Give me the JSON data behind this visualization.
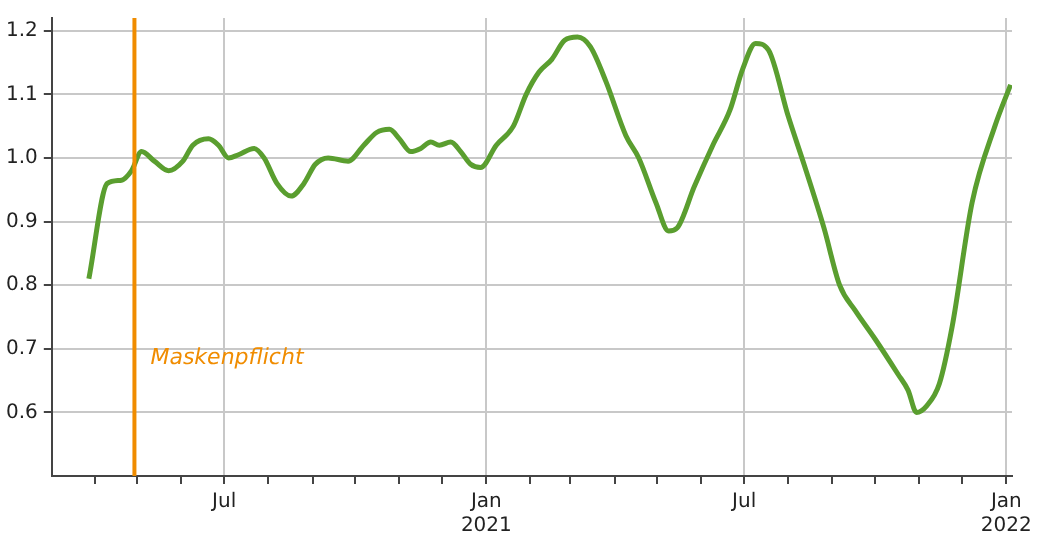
{
  "chart_data": {
    "type": "line",
    "x": [
      "2020-03-28",
      "2020-04-10",
      "2020-04-20",
      "2020-04-27",
      "2020-05-04",
      "2020-05-13",
      "2020-05-23",
      "2020-06-02",
      "2020-06-09",
      "2020-06-20",
      "2020-06-27",
      "2020-07-04",
      "2020-07-11",
      "2020-07-22",
      "2020-07-29",
      "2020-08-07",
      "2020-08-17",
      "2020-08-26",
      "2020-09-03",
      "2020-09-12",
      "2020-09-26",
      "2020-10-07",
      "2020-10-16",
      "2020-10-25",
      "2020-11-01",
      "2020-11-09",
      "2020-11-16",
      "2020-11-23",
      "2020-11-29",
      "2020-12-07",
      "2020-12-14",
      "2020-12-21",
      "2020-12-28",
      "2021-01-08",
      "2021-01-20",
      "2021-01-29",
      "2021-02-07",
      "2021-02-16",
      "2021-02-25",
      "2021-03-06",
      "2021-03-15",
      "2021-03-26",
      "2021-04-09",
      "2021-04-18",
      "2021-04-30",
      "2021-05-09",
      "2021-05-15",
      "2021-05-27",
      "2021-06-09",
      "2021-06-21",
      "2021-06-30",
      "2021-07-09",
      "2021-07-18",
      "2021-08-01",
      "2021-08-12",
      "2021-08-26",
      "2021-09-06",
      "2021-09-17",
      "2021-10-01",
      "2021-10-17",
      "2021-10-24",
      "2021-10-30",
      "2021-11-06",
      "2021-11-15",
      "2021-11-24",
      "2021-12-08",
      "2021-12-24",
      "2022-01-04"
    ],
    "series": [
      {
        "color": "#5a9e2f",
        "values": [
          0.81,
          0.96,
          0.965,
          0.98,
          1.01,
          0.995,
          0.98,
          0.995,
          1.02,
          1.03,
          1.02,
          1.0,
          1.005,
          1.015,
          1.0,
          0.96,
          0.94,
          0.96,
          0.99,
          1.0,
          0.995,
          1.02,
          1.04,
          1.045,
          1.03,
          1.01,
          1.015,
          1.025,
          1.02,
          1.025,
          1.01,
          0.99,
          0.985,
          1.02,
          1.05,
          1.1,
          1.135,
          1.155,
          1.185,
          1.19,
          1.175,
          1.12,
          1.035,
          1.0,
          0.93,
          0.885,
          0.89,
          0.955,
          1.02,
          1.075,
          1.14,
          1.18,
          1.17,
          1.065,
          0.99,
          0.89,
          0.8,
          0.76,
          0.715,
          0.66,
          0.635,
          0.6,
          0.61,
          0.645,
          0.735,
          0.93,
          1.05,
          1.115
        ]
      }
    ],
    "xlim": [
      "2020-03-02",
      "2022-01-05"
    ],
    "xticks": [
      {
        "value": "2020-04-01",
        "label": null
      },
      {
        "value": "2020-05-01",
        "label": null
      },
      {
        "value": "2020-06-01",
        "label": null
      },
      {
        "value": "2020-07-01",
        "label": "Jul"
      },
      {
        "value": "2020-08-01",
        "label": null
      },
      {
        "value": "2020-09-01",
        "label": null
      },
      {
        "value": "2020-10-01",
        "label": null
      },
      {
        "value": "2020-11-01",
        "label": null
      },
      {
        "value": "2020-12-01",
        "label": null
      },
      {
        "value": "2021-01-01",
        "label": "Jan\n2021"
      },
      {
        "value": "2021-02-01",
        "label": null
      },
      {
        "value": "2021-03-01",
        "label": null
      },
      {
        "value": "2021-04-01",
        "label": null
      },
      {
        "value": "2021-05-01",
        "label": null
      },
      {
        "value": "2021-06-01",
        "label": null
      },
      {
        "value": "2021-07-01",
        "label": "Jul"
      },
      {
        "value": "2021-08-01",
        "label": null
      },
      {
        "value": "2021-09-01",
        "label": null
      },
      {
        "value": "2021-10-01",
        "label": null
      },
      {
        "value": "2021-11-01",
        "label": null
      },
      {
        "value": "2021-12-01",
        "label": null
      },
      {
        "value": "2022-01-01",
        "label": "Jan\n2022"
      }
    ],
    "ylim": [
      0.5,
      1.22
    ],
    "yticks": [
      0.6,
      0.7,
      0.8,
      0.9,
      {
        "value": 1,
        "label": "1.0"
      },
      1.1,
      1.2
    ],
    "grid": true,
    "ref_lines": [
      {
        "axis": "x",
        "value": "2020-04-29",
        "label": "Maskenpflicht",
        "color": "#f08c00"
      }
    ]
  }
}
